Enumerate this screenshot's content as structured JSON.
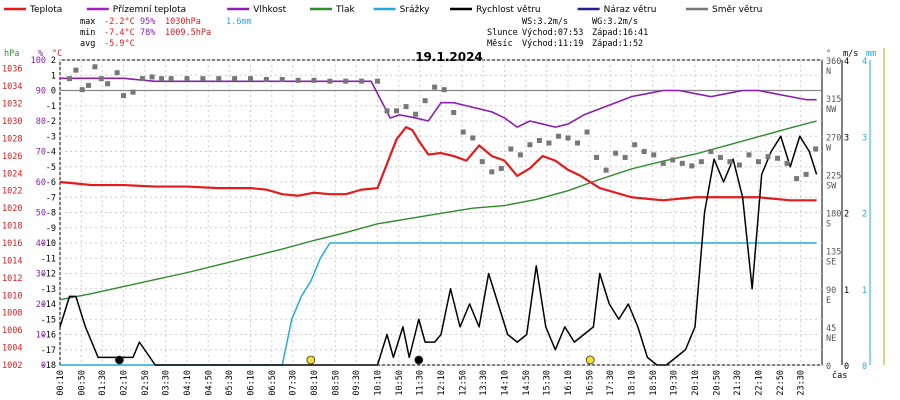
{
  "chart_data": {
    "type": "line",
    "title": "19.1.2024",
    "legend": [
      {
        "name": "Teplota",
        "color": "#e31b1b"
      },
      {
        "name": "Přízemní teplota",
        "color": "#a020c8"
      },
      {
        "name": "Vlhkost",
        "color": "#8a1fb0"
      },
      {
        "name": "Tlak",
        "color": "#2e8b2e"
      },
      {
        "name": "Srážky",
        "color": "#22aadd"
      },
      {
        "name": "Rychlost větru",
        "color": "#000000"
      },
      {
        "name": "Náraz větru",
        "color": "#1f1f8f"
      },
      {
        "name": "Směr větru",
        "color": "#777777"
      }
    ],
    "stats": {
      "max": {
        "label": "max",
        "temp": "-2.2°C",
        "hum": "95%",
        "press": "1030hPa",
        "rain": "1.6mm"
      },
      "min": {
        "label": "min",
        "temp": "-7.4°C",
        "hum": "78%",
        "press": "1009.5hPa"
      },
      "avg": {
        "label": "avg",
        "temp": "-5.9°C"
      }
    },
    "info": {
      "ws": "WS:3.2m/s",
      "wg": "WG:3.2m/s",
      "sun_label": "Slunce",
      "sunrise": "Východ:07:53",
      "sunset": "Západ:16:41",
      "moon_label": "Měsíc",
      "moonrise": "Východ:11:19",
      "moonset": "Západ:1:52"
    },
    "axes": {
      "hpa": {
        "unit": "hPa",
        "ticks": [
          "1036",
          "1034",
          "1032",
          "1030",
          "1028",
          "1026",
          "1024",
          "1022",
          "1020",
          "1018",
          "1016",
          "1014",
          "1012",
          "1010",
          "1008",
          "1006",
          "1004",
          "1002"
        ]
      },
      "pct": {
        "unit": "%",
        "ticks": [
          "100",
          "90",
          "80",
          "70",
          "60",
          "50",
          "40",
          "30",
          "20",
          "10",
          "0"
        ]
      },
      "temp": {
        "unit": "°C",
        "ticks": [
          "2",
          "1",
          "0",
          "-1",
          "-2",
          "-3",
          "-4",
          "-5",
          "-6",
          "-7",
          "-8",
          "-9",
          "-10",
          "-11",
          "-12",
          "-13",
          "-14",
          "-15",
          "-16",
          "-17",
          "-18"
        ]
      },
      "dir": {
        "unit": "°",
        "ticks": [
          "360",
          "315",
          "270",
          "225",
          "180",
          "135",
          "90",
          "45",
          "0"
        ],
        "labels": [
          "N",
          "NW",
          "W",
          "SW",
          "S",
          "SE",
          "E",
          "NE",
          ""
        ]
      },
      "ms": {
        "unit": "m/s",
        "ticks": [
          "4",
          "3",
          "2",
          "1",
          "0"
        ]
      },
      "mm": {
        "unit": "mm",
        "ticks": [
          "4",
          "3",
          "2",
          "1",
          "0"
        ]
      },
      "x_unit": "čas",
      "x_ticks": [
        "00:10",
        "00:50",
        "01:30",
        "02:10",
        "02:50",
        "03:30",
        "04:10",
        "04:50",
        "05:30",
        "06:10",
        "06:50",
        "07:30",
        "08:10",
        "08:50",
        "09:30",
        "10:10",
        "10:50",
        "11:30",
        "12:10",
        "12:50",
        "13:30",
        "14:10",
        "14:50",
        "15:30",
        "16:10",
        "16:50",
        "17:30",
        "18:10",
        "18:50",
        "19:30",
        "20:10",
        "20:50",
        "21:30",
        "22:10",
        "22:50",
        "23:30"
      ]
    },
    "x_hours": [
      0,
      0.67,
      1.33,
      2,
      2.67,
      3.33,
      4,
      4.67,
      5.33,
      6,
      6.67,
      7.33,
      8,
      8.67,
      9.33,
      10,
      10.67,
      11.33,
      12,
      12.67,
      13.33,
      14,
      14.67,
      15.33,
      16,
      16.67,
      17.33,
      18,
      18.67,
      19.33,
      20,
      20.67,
      21.33,
      22,
      22.67,
      23.33,
      23.83
    ],
    "series": [
      {
        "name": "Teplota",
        "unit": "°C",
        "color": "#e31b1b",
        "x": [
          0,
          0.5,
          1,
          2,
          3,
          4,
          5,
          6,
          6.5,
          7,
          7.5,
          8,
          8.5,
          9,
          9.5,
          10,
          10.3,
          10.6,
          10.9,
          11.1,
          11.3,
          11.6,
          12,
          12.4,
          12.8,
          13.2,
          13.6,
          14,
          14.4,
          14.8,
          15.2,
          15.6,
          16,
          16.4,
          17,
          18,
          19,
          19.5,
          20,
          21,
          22,
          23,
          23.83
        ],
        "y": [
          -6.0,
          -6.1,
          -6.2,
          -6.2,
          -6.3,
          -6.3,
          -6.4,
          -6.4,
          -6.5,
          -6.8,
          -6.9,
          -6.7,
          -6.8,
          -6.8,
          -6.5,
          -6.4,
          -4.8,
          -3.2,
          -2.4,
          -2.6,
          -3.3,
          -4.2,
          -4.1,
          -4.3,
          -4.6,
          -3.6,
          -4.3,
          -4.6,
          -5.6,
          -5.1,
          -4.3,
          -4.6,
          -5.2,
          -5.6,
          -6.4,
          -7.0,
          -7.2,
          -7.1,
          -7.0,
          -7.0,
          -7.0,
          -7.2,
          -7.2
        ]
      },
      {
        "name": "Vlhkost",
        "unit": "%",
        "color": "#8a1fb0",
        "x": [
          0,
          1,
          2,
          3,
          4,
          5,
          6,
          7,
          8,
          9,
          9.8,
          10.1,
          10.4,
          10.7,
          11.2,
          11.6,
          12,
          12.4,
          12.8,
          13.2,
          13.6,
          14,
          14.4,
          14.8,
          15.2,
          15.6,
          16,
          16.5,
          17,
          17.5,
          18,
          18.5,
          19,
          19.5,
          20,
          20.5,
          21,
          21.5,
          22,
          22.5,
          23,
          23.5,
          23.83
        ],
        "y": [
          94,
          94,
          94,
          93,
          93,
          93,
          93,
          93,
          93,
          93,
          93,
          87,
          81,
          82,
          81,
          80,
          86,
          86,
          85,
          84,
          83,
          81,
          78,
          80,
          79,
          78,
          79,
          82,
          84,
          86,
          88,
          89,
          90,
          90,
          89,
          88,
          89,
          90,
          90,
          89,
          88,
          87,
          87
        ]
      },
      {
        "name": "Tlak",
        "unit": "hPa",
        "color": "#2e8b2e",
        "x": [
          0,
          1,
          2,
          3,
          4,
          5,
          6,
          7,
          8,
          9,
          10,
          11,
          12,
          13,
          14,
          15,
          16,
          17,
          18,
          19,
          20,
          21,
          22,
          23,
          23.83
        ],
        "y": [
          1009.5,
          1010.2,
          1011.0,
          1011.8,
          1012.6,
          1013.5,
          1014.4,
          1015.3,
          1016.3,
          1017.2,
          1018.2,
          1018.8,
          1019.4,
          1020.0,
          1020.3,
          1021.0,
          1022.0,
          1023.3,
          1024.5,
          1025.4,
          1026.2,
          1027.2,
          1028.2,
          1029.2,
          1030.0
        ]
      },
      {
        "name": "Srážky",
        "unit": "mm",
        "color": "#22aadd",
        "x": [
          0,
          7.0,
          7.3,
          7.6,
          7.9,
          8.2,
          8.5,
          9,
          12,
          16,
          20,
          23.83
        ],
        "y": [
          0,
          0,
          0.6,
          0.9,
          1.1,
          1.4,
          1.6,
          1.6,
          1.6,
          1.6,
          1.6,
          1.6
        ]
      },
      {
        "name": "Rychlost větru",
        "unit": "m/s",
        "color": "#000000",
        "x": [
          0,
          0.3,
          0.5,
          0.8,
          1.0,
          1.2,
          1.4,
          2.0,
          2.3,
          2.5,
          3,
          4,
          5,
          6,
          7,
          8,
          9,
          10,
          10.3,
          10.5,
          10.8,
          11.0,
          11.3,
          11.5,
          11.8,
          12.0,
          12.3,
          12.6,
          12.9,
          13.2,
          13.5,
          13.8,
          14.1,
          14.4,
          14.7,
          15.0,
          15.3,
          15.6,
          15.9,
          16.2,
          16.5,
          16.8,
          17.0,
          17.3,
          17.6,
          17.9,
          18.2,
          18.5,
          18.8,
          19.1,
          19.4,
          19.7,
          20.0,
          20.3,
          20.6,
          20.9,
          21.2,
          21.5,
          21.8,
          22.1,
          22.4,
          22.7,
          23.0,
          23.3,
          23.6,
          23.83
        ],
        "y": [
          0.5,
          0.9,
          0.9,
          0.5,
          0.3,
          0.1,
          0.1,
          0.1,
          0.1,
          0.3,
          0.0,
          0.0,
          0.0,
          0.0,
          0.0,
          0.0,
          0.0,
          0.0,
          0.4,
          0.1,
          0.5,
          0.1,
          0.6,
          0.3,
          0.3,
          0.4,
          1.0,
          0.5,
          0.8,
          0.5,
          1.2,
          0.8,
          0.4,
          0.3,
          0.4,
          1.3,
          0.5,
          0.2,
          0.5,
          0.3,
          0.4,
          0.5,
          1.2,
          0.8,
          0.6,
          0.8,
          0.5,
          0.1,
          0.0,
          0.0,
          0.1,
          0.2,
          0.5,
          2.0,
          2.7,
          2.4,
          2.7,
          2.2,
          1.0,
          2.5,
          2.8,
          3.0,
          2.6,
          3.0,
          2.8,
          2.5
        ]
      }
    ],
    "wind_direction_deg": {
      "x": [
        0.3,
        0.5,
        0.7,
        0.9,
        1.1,
        1.3,
        1.5,
        1.8,
        2.0,
        2.3,
        2.6,
        2.9,
        3.2,
        3.5,
        4,
        4.5,
        5,
        5.5,
        6,
        6.5,
        7,
        7.5,
        8,
        8.5,
        9,
        9.5,
        10,
        10.3,
        10.6,
        10.9,
        11.2,
        11.5,
        11.8,
        12.1,
        12.4,
        12.7,
        13.0,
        13.3,
        13.6,
        13.9,
        14.2,
        14.5,
        14.8,
        15.1,
        15.4,
        15.7,
        16.0,
        16.3,
        16.6,
        16.9,
        17.2,
        17.5,
        17.8,
        18.1,
        18.4,
        18.7,
        19.0,
        19.3,
        19.6,
        19.9,
        20.2,
        20.5,
        20.8,
        21.1,
        21.4,
        21.7,
        22.0,
        22.3,
        22.6,
        22.9,
        23.2,
        23.5,
        23.8
      ],
      "y": [
        338,
        348,
        325,
        330,
        352,
        338,
        332,
        345,
        318,
        322,
        338,
        340,
        338,
        338,
        338,
        338,
        338,
        338,
        338,
        337,
        337,
        336,
        336,
        335,
        335,
        335,
        335,
        300,
        300,
        305,
        296,
        312,
        328,
        325,
        298,
        275,
        268,
        240,
        228,
        232,
        255,
        248,
        260,
        265,
        262,
        270,
        268,
        262,
        275,
        245,
        230,
        250,
        245,
        260,
        252,
        248,
        238,
        242,
        238,
        235,
        240,
        252,
        245,
        240,
        236,
        248,
        240,
        246,
        244,
        238,
        220,
        225,
        255
      ]
    }
  }
}
